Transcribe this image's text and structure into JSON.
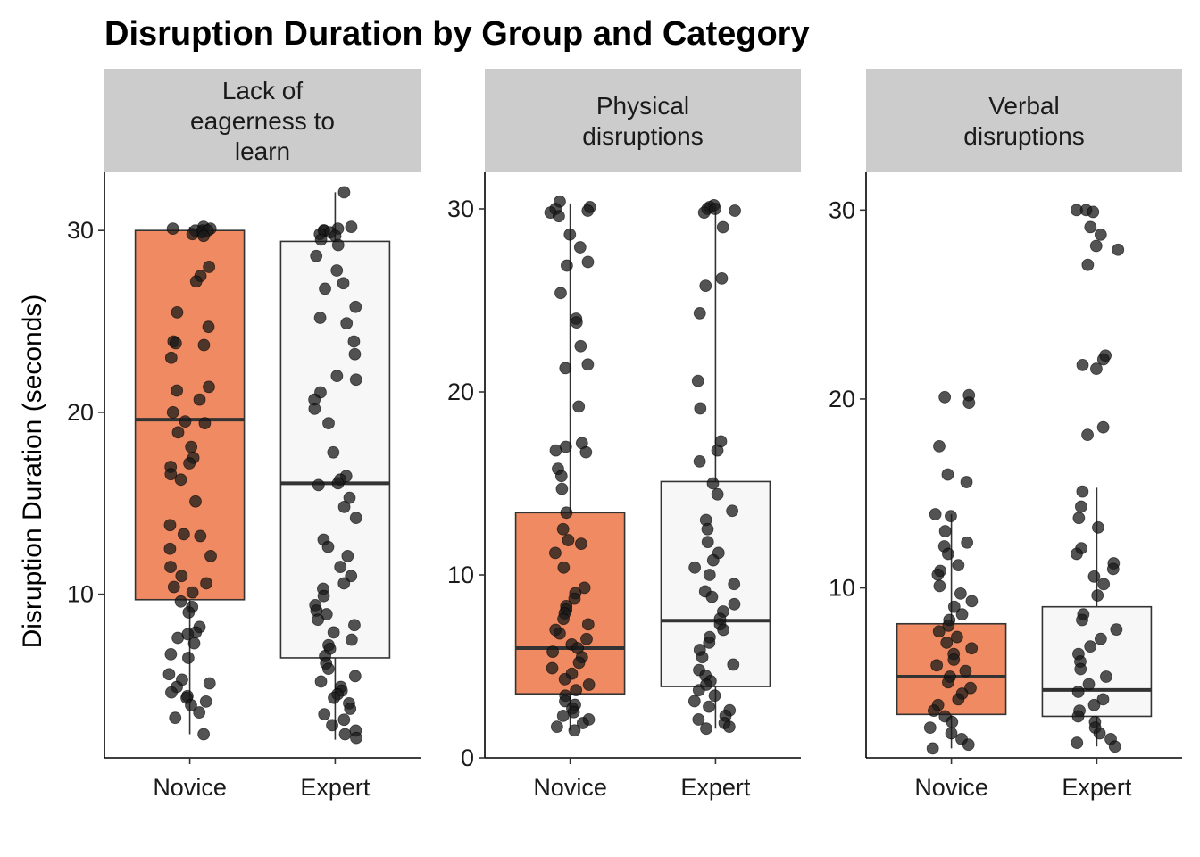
{
  "chart_data": {
    "type": "box",
    "title": "Disruption Duration by Group and Category",
    "ylabel": "Disruption Duration (seconds)",
    "xlabel": "",
    "categories": [
      "Novice",
      "Expert"
    ],
    "colors": {
      "Novice": "#EF8A62",
      "Expert": "#F7F7F7",
      "point": "#1a1a1a",
      "strip": "#cccccc"
    },
    "legend": "none",
    "grid": false,
    "panels": [
      {
        "label": [
          "Lack of",
          "eagerness to",
          "learn"
        ],
        "ylim": [
          1,
          33.2
        ],
        "yticks": [
          10,
          20,
          30
        ],
        "boxes": [
          {
            "group": "Novice",
            "whisker_low": 2.3,
            "q1": 9.7,
            "median": 19.6,
            "q3": 30.0,
            "whisker_high": 30.2
          },
          {
            "group": "Expert",
            "whisker_low": 2.0,
            "q1": 6.5,
            "median": 16.1,
            "q3": 29.4,
            "whisker_high": 32.1
          }
        ],
        "points": {
          "Novice": [
            30.2,
            30.1,
            30.0,
            30.0,
            29.9,
            29.8,
            30.1,
            30.0,
            29.7,
            28.0,
            27.5,
            27.2,
            25.5,
            24.7,
            23.9,
            23.7,
            23.8,
            23.0,
            21.4,
            21.2,
            20.7,
            20.0,
            19.5,
            19.4,
            18.9,
            18.1,
            17.5,
            17.2,
            17.0,
            16.6,
            16.3,
            15.1,
            13.8,
            13.3,
            13.2,
            12.5,
            12.1,
            11.5,
            11.0,
            10.6,
            10.4,
            10.1,
            9.6,
            9.3,
            9.0,
            8.2,
            7.9,
            7.8,
            7.6,
            7.3,
            6.7,
            6.5,
            5.6,
            5.3,
            5.1,
            4.9,
            4.6,
            4.4,
            4.3,
            4.1,
            3.9,
            3.5,
            3.2,
            2.3
          ],
          "Expert": [
            32.1,
            30.2,
            30.1,
            30.0,
            30.0,
            29.9,
            29.8,
            29.7,
            29.5,
            29.2,
            28.6,
            27.8,
            27.1,
            26.8,
            25.8,
            25.2,
            24.9,
            23.9,
            23.2,
            22.0,
            21.8,
            21.1,
            20.7,
            20.2,
            19.4,
            17.8,
            16.5,
            16.3,
            16.1,
            16.0,
            15.3,
            14.8,
            14.2,
            13.0,
            12.6,
            12.1,
            11.5,
            11.0,
            10.6,
            10.3,
            9.9,
            9.4,
            9.1,
            8.9,
            8.6,
            8.3,
            7.9,
            7.5,
            7.2,
            7.0,
            6.6,
            6.2,
            5.9,
            5.5,
            5.2,
            4.9,
            4.7,
            4.5,
            4.3,
            4.0,
            3.7,
            3.4,
            3.1,
            2.8,
            2.5,
            2.3,
            2.1
          ]
        }
      },
      {
        "label": [
          "Physical",
          "disruptions"
        ],
        "ylim": [
          0,
          32
        ],
        "yticks": [
          0,
          10,
          20,
          30
        ],
        "boxes": [
          {
            "group": "Novice",
            "whisker_low": 1.5,
            "q1": 3.5,
            "median": 6.0,
            "q3": 13.4,
            "whisker_high": 30.3
          },
          {
            "group": "Expert",
            "whisker_low": 1.6,
            "q1": 3.9,
            "median": 7.5,
            "q3": 15.1,
            "whisker_high": 30.1
          }
        ],
        "points": {
          "Novice": [
            30.4,
            30.1,
            30.0,
            29.9,
            29.8,
            29.6,
            28.6,
            27.9,
            27.1,
            26.9,
            25.4,
            24.0,
            23.8,
            22.5,
            21.5,
            21.3,
            19.2,
            17.2,
            17.0,
            16.8,
            16.7,
            15.8,
            15.4,
            14.7,
            13.4,
            12.5,
            11.9,
            11.7,
            11.2,
            10.4,
            9.3,
            9.0,
            8.7,
            8.3,
            8.1,
            7.9,
            7.6,
            7.3,
            7.0,
            6.8,
            6.5,
            6.2,
            6.0,
            5.8,
            5.5,
            5.2,
            4.9,
            4.6,
            4.3,
            4.0,
            3.7,
            3.4,
            3.1,
            2.9,
            2.7,
            2.5,
            2.3,
            2.1,
            1.9,
            1.7,
            1.5
          ],
          "Expert": [
            30.2,
            30.1,
            30.0,
            30.0,
            29.9,
            29.8,
            29.0,
            26.2,
            25.8,
            24.3,
            20.6,
            19.1,
            17.3,
            16.8,
            16.2,
            15.0,
            14.4,
            13.5,
            13.0,
            12.5,
            11.8,
            11.2,
            10.8,
            10.4,
            10.0,
            9.5,
            9.1,
            8.8,
            8.4,
            8.0,
            7.6,
            7.3,
            7.0,
            6.6,
            6.3,
            5.9,
            5.5,
            5.1,
            4.8,
            4.5,
            4.2,
            4.0,
            3.7,
            3.4,
            3.1,
            2.8,
            2.6,
            2.3,
            2.1,
            1.9,
            1.7,
            1.6
          ]
        }
      },
      {
        "label": [
          "Verbal",
          "disruptions"
        ],
        "ylim": [
          1,
          32
        ],
        "yticks": [
          10,
          20,
          30
        ],
        "boxes": [
          {
            "group": "Novice",
            "whisker_low": 1.5,
            "q1": 3.3,
            "median": 5.3,
            "q3": 8.1,
            "whisker_high": 13.9
          },
          {
            "group": "Expert",
            "whisker_low": 1.6,
            "q1": 3.2,
            "median": 4.6,
            "q3": 9.0,
            "whisker_high": 15.3
          }
        ],
        "points": {
          "Novice": [
            20.2,
            20.1,
            19.8,
            17.5,
            16.0,
            15.6,
            13.9,
            13.8,
            13.0,
            12.4,
            12.2,
            11.8,
            11.2,
            10.9,
            10.7,
            10.1,
            9.7,
            9.3,
            9.0,
            8.6,
            8.3,
            8.0,
            7.7,
            7.4,
            7.1,
            6.8,
            6.5,
            6.2,
            5.9,
            5.6,
            5.3,
            5.0,
            4.7,
            4.4,
            4.1,
            3.8,
            3.5,
            3.2,
            2.9,
            2.6,
            2.3,
            2.0,
            1.7,
            1.5
          ],
          "Expert": [
            30.0,
            30.0,
            29.9,
            29.1,
            28.7,
            28.1,
            27.9,
            27.1,
            22.3,
            22.1,
            21.8,
            21.6,
            18.5,
            18.1,
            15.1,
            14.3,
            13.7,
            13.2,
            12.1,
            11.8,
            11.3,
            11.0,
            10.6,
            10.2,
            9.6,
            8.6,
            8.3,
            7.8,
            7.3,
            6.9,
            6.5,
            6.1,
            5.7,
            5.3,
            4.9,
            4.5,
            4.1,
            3.8,
            3.5,
            3.2,
            2.9,
            2.6,
            2.3,
            2.0,
            1.8,
            1.6
          ]
        }
      }
    ]
  }
}
